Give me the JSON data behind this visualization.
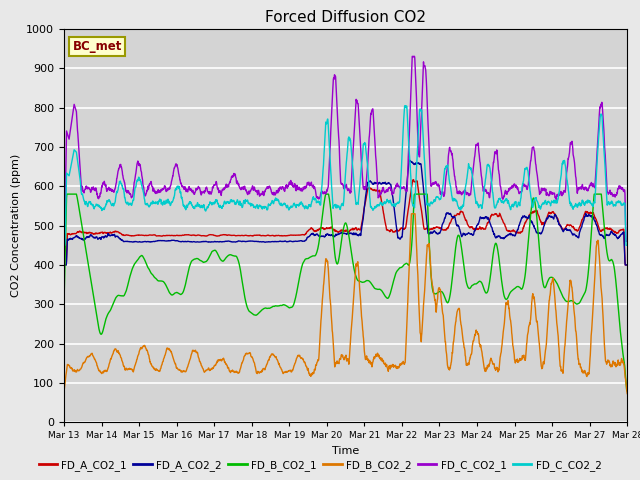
{
  "title": "Forced Diffusion CO2",
  "ylabel": "CO2 Concentration (ppm)",
  "xlabel": "Time",
  "ylim": [
    0,
    1000
  ],
  "annotation": "BC_met",
  "background_color": "#e8e8e8",
  "plot_bg_color": "#d4d4d4",
  "legend_entries": [
    "FD_A_CO2_1",
    "FD_A_CO2_2",
    "FD_B_CO2_1",
    "FD_B_CO2_2",
    "FD_C_CO2_1",
    "FD_C_CO2_2"
  ],
  "legend_colors": [
    "#cc0000",
    "#000099",
    "#00bb00",
    "#dd7700",
    "#9900cc",
    "#00cccc"
  ],
  "x_tick_labels": [
    "Mar 13",
    "Mar 14",
    "Mar 15",
    "Mar 16",
    "Mar 17",
    "Mar 18",
    "Mar 19",
    "Mar 20",
    "Mar 21",
    "Mar 22",
    "Mar 23",
    "Mar 24",
    "Mar 25",
    "Mar 26",
    "Mar 27",
    "Mar 28"
  ],
  "n_points": 2000
}
